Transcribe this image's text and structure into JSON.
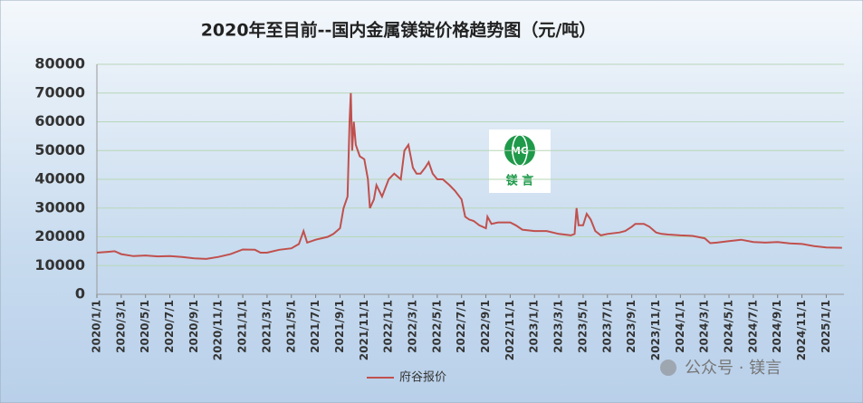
{
  "chart_data": {
    "type": "line",
    "title": "2020年至目前--国内金属镁锭价格趋势图（元/吨）",
    "x": [
      "2020/1/1",
      "2020/2/1",
      "2020/2/15",
      "2020/3/1",
      "2020/4/1",
      "2020/5/1",
      "2020/6/1",
      "2020/7/1",
      "2020/8/1",
      "2020/9/1",
      "2020/10/1",
      "2020/11/1",
      "2020/12/1",
      "2021/1/1",
      "2021/2/1",
      "2021/2/15",
      "2021/3/1",
      "2021/4/1",
      "2021/5/1",
      "2021/5/20",
      "2021/6/1",
      "2021/6/10",
      "2021/7/1",
      "2021/8/1",
      "2021/8/15",
      "2021/9/1",
      "2021/9/10",
      "2021/9/20",
      "2021/9/25",
      "2021/9/28",
      "2021/10/1",
      "2021/10/5",
      "2021/10/10",
      "2021/10/20",
      "2021/11/1",
      "2021/11/10",
      "2021/11/15",
      "2021/11/25",
      "2021/12/1",
      "2021/12/15",
      "2022/1/1",
      "2022/1/15",
      "2022/2/1",
      "2022/2/10",
      "2022/2/20",
      "2022/3/1",
      "2022/3/10",
      "2022/3/20",
      "2022/4/1",
      "2022/4/10",
      "2022/4/20",
      "2022/5/1",
      "2022/5/15",
      "2022/6/1",
      "2022/6/15",
      "2022/7/1",
      "2022/7/10",
      "2022/7/20",
      "2022/8/1",
      "2022/8/15",
      "2022/9/1",
      "2022/9/5",
      "2022/9/15",
      "2022/10/1",
      "2022/11/1",
      "2022/11/15",
      "2022/12/1",
      "2023/1/1",
      "2023/2/1",
      "2023/3/1",
      "2023/4/1",
      "2023/4/10",
      "2023/4/15",
      "2023/4/20",
      "2023/5/1",
      "2023/5/10",
      "2023/5/20",
      "2023/6/1",
      "2023/6/15",
      "2023/7/1",
      "2023/8/1",
      "2023/8/15",
      "2023/9/1",
      "2023/9/10",
      "2023/10/1",
      "2023/10/15",
      "2023/11/1",
      "2023/11/15",
      "2023/12/1",
      "2024/1/1",
      "2024/2/1",
      "2024/3/1",
      "2024/3/15",
      "2024/4/1",
      "2024/5/1",
      "2024/6/1",
      "2024/7/1",
      "2024/8/1",
      "2024/9/1",
      "2024/10/1",
      "2024/11/1",
      "2024/12/1",
      "2025/1/1",
      "2025/2/10"
    ],
    "series": [
      {
        "name": "府谷报价",
        "color": "#c0504d",
        "values": [
          14500,
          14800,
          15000,
          14000,
          13300,
          13500,
          13200,
          13300,
          13000,
          12500,
          12300,
          13000,
          14000,
          15600,
          15500,
          14500,
          14500,
          15500,
          16000,
          17500,
          22000,
          18000,
          19000,
          20000,
          21000,
          23000,
          30000,
          34000,
          60000,
          70000,
          50000,
          60000,
          52000,
          48000,
          47000,
          40000,
          30000,
          33000,
          38000,
          34000,
          40000,
          42000,
          40000,
          50000,
          52000,
          44000,
          42000,
          42000,
          44000,
          46000,
          42000,
          40000,
          40000,
          38000,
          36000,
          33000,
          27000,
          26000,
          25500,
          24000,
          23000,
          27000,
          24500,
          25000,
          25000,
          24000,
          22500,
          22000,
          22000,
          21000,
          20500,
          21000,
          30000,
          24000,
          24000,
          28000,
          26000,
          22000,
          20500,
          21000,
          21500,
          22000,
          23500,
          24500,
          24500,
          23500,
          21500,
          21000,
          20800,
          20500,
          20300,
          19500,
          17800,
          18000,
          18500,
          19000,
          18200,
          18000,
          18200,
          17700,
          17500,
          16800,
          16300,
          16200
        ]
      }
    ],
    "xlim": [
      "2020/1/1",
      "2025/2/15"
    ],
    "xticks": [
      "2020/1/1",
      "2020/3/1",
      "2020/5/1",
      "2020/7/1",
      "2020/9/1",
      "2020/11/1",
      "2021/1/1",
      "2021/3/1",
      "2021/5/1",
      "2021/7/1",
      "2021/9/1",
      "2021/11/1",
      "2022/1/1",
      "2022/3/1",
      "2022/5/1",
      "2022/7/1",
      "2022/9/1",
      "2022/11/1",
      "2023/1/1",
      "2023/3/1",
      "2023/5/1",
      "2023/7/1",
      "2023/9/1",
      "2023/11/1",
      "2024/1/1",
      "2024/3/1",
      "2024/5/1",
      "2024/7/1",
      "2024/9/1",
      "2024/11/1",
      "2025/1/1"
    ],
    "ylim": [
      0,
      80000
    ],
    "yticks": [
      0,
      10000,
      20000,
      30000,
      40000,
      50000,
      60000,
      70000,
      80000
    ],
    "grid": true,
    "legend": "bottom"
  },
  "logo": {
    "mark": "MG",
    "caption": "镁 言"
  },
  "watermark": "公众号 · 镁言"
}
